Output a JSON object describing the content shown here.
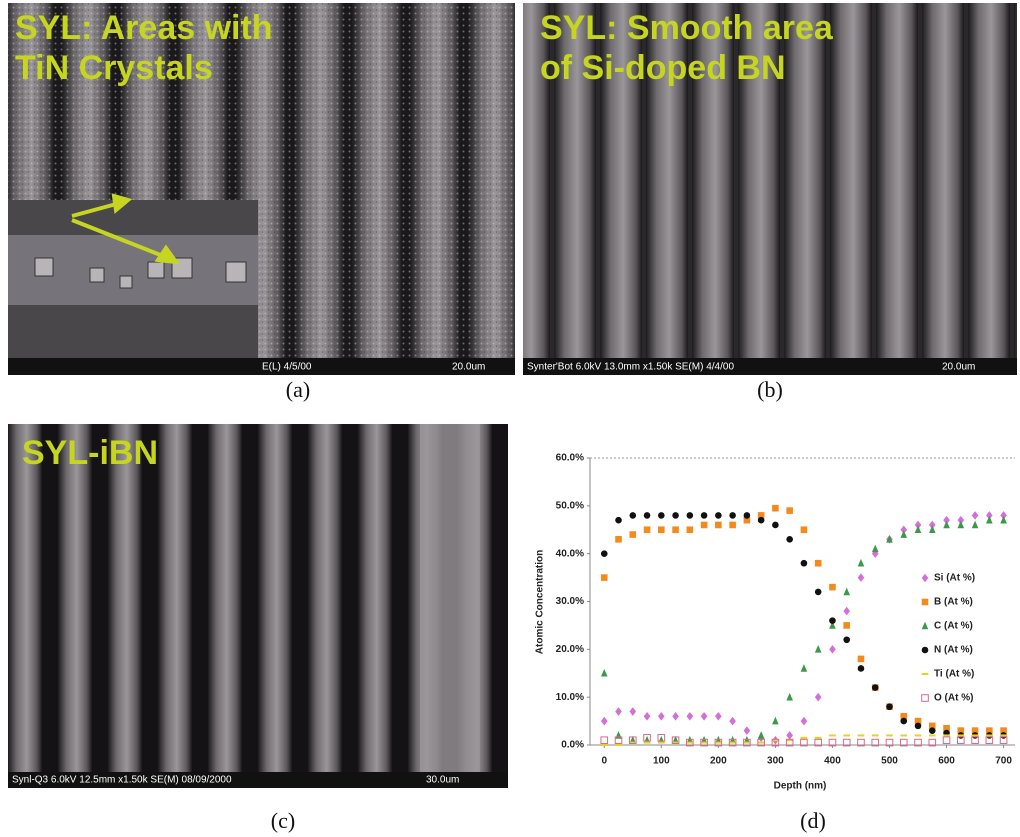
{
  "panels": [
    {
      "overlay": [
        "SYL: Areas with",
        "TiN Crystals"
      ],
      "info": "E(L) 4/5/00",
      "scale": "20.0um",
      "caption": "(a)"
    },
    {
      "overlay": [
        "SYL: Smooth area",
        "of Si-doped BN"
      ],
      "info": "Synter'Bot 6.0kV 13.0mm x1.50k SE(M) 4/4/00",
      "scale": "20.0um",
      "caption": "(b)"
    },
    {
      "overlay": [
        "SYL-iBN"
      ],
      "info": "Synl-Q3 6.0kV 12.5mm x1.50k SE(M) 08/09/2000",
      "scale": "30.0um",
      "caption": "(c)"
    }
  ],
  "chart_data": {
    "type": "scatter",
    "caption": "(d)",
    "xlabel": "Depth (nm)",
    "ylabel": "Atomic Concentration",
    "x": [
      0,
      25,
      50,
      75,
      100,
      125,
      150,
      175,
      200,
      225,
      250,
      275,
      300,
      325,
      350,
      375,
      400,
      425,
      450,
      475,
      500,
      525,
      550,
      575,
      600,
      625,
      650,
      675,
      700
    ],
    "series": [
      {
        "name": "Si (At %)",
        "color": "#d36fd8",
        "marker": "diamond",
        "values": [
          5,
          7,
          7,
          6,
          6,
          6,
          6,
          6,
          6,
          5,
          3,
          1.5,
          1,
          2,
          5,
          10,
          20,
          28,
          35,
          40,
          43,
          45,
          46,
          46,
          47,
          47,
          48,
          48,
          48
        ]
      },
      {
        "name": "B (At %)",
        "color": "#f28a1e",
        "marker": "square",
        "values": [
          35,
          43,
          44,
          45,
          45,
          45,
          45,
          46,
          46,
          46,
          47,
          48,
          49.5,
          49,
          45,
          38,
          33,
          25,
          18,
          12,
          8,
          6,
          5,
          4,
          3.5,
          3,
          3,
          3,
          3
        ]
      },
      {
        "name": "C (At %)",
        "color": "#3a9a4a",
        "marker": "triangle",
        "values": [
          15,
          2,
          1,
          1,
          1,
          1,
          1,
          1,
          1,
          1,
          1,
          2,
          5,
          10,
          16,
          20,
          25,
          32,
          38,
          41,
          43,
          44,
          45,
          45,
          46,
          46,
          46,
          47,
          47
        ]
      },
      {
        "name": "N (At %)",
        "color": "#111111",
        "marker": "circle",
        "values": [
          40,
          47,
          48,
          48,
          48,
          48,
          48,
          48,
          48,
          48,
          48,
          47,
          46,
          43,
          38,
          32,
          26,
          22,
          16,
          12,
          8,
          5,
          4,
          3,
          2.5,
          2,
          2,
          2,
          2
        ]
      },
      {
        "name": "Ti (At %)",
        "color": "#e8d21a",
        "marker": "dash",
        "values": [
          0,
          0,
          0.5,
          0.5,
          0.5,
          0.5,
          0.5,
          0.5,
          0.5,
          0.5,
          0.5,
          0.5,
          1,
          1,
          1.5,
          1.5,
          2,
          2,
          2,
          2,
          2,
          2,
          2,
          2,
          2,
          2,
          2,
          2,
          2
        ]
      },
      {
        "name": "O (At %)",
        "color": "#d86a8a",
        "marker": "open-square",
        "values": [
          1,
          1,
          1,
          1.5,
          1.5,
          1,
          0.5,
          0.5,
          0.5,
          0.5,
          0.5,
          0.5,
          0.5,
          0.5,
          0.5,
          0.5,
          0.5,
          0.5,
          0.5,
          0.5,
          0.5,
          0.5,
          0.5,
          0.5,
          1,
          1,
          1,
          1,
          1
        ]
      }
    ],
    "xlim": [
      -25,
      720
    ],
    "ylim": [
      0,
      60
    ],
    "xticks": [
      0,
      100,
      200,
      300,
      400,
      500,
      600,
      700
    ],
    "yticks": [
      {
        "value": 0,
        "label": "0.0%"
      },
      {
        "value": 10,
        "label": "10.0%"
      },
      {
        "value": 20,
        "label": "20.0%"
      },
      {
        "value": 30,
        "label": "30.0%"
      },
      {
        "value": 40,
        "label": "40.0%"
      },
      {
        "value": 50,
        "label": "50.0%"
      },
      {
        "value": 60,
        "label": "60.0%"
      }
    ],
    "legend": "right"
  }
}
